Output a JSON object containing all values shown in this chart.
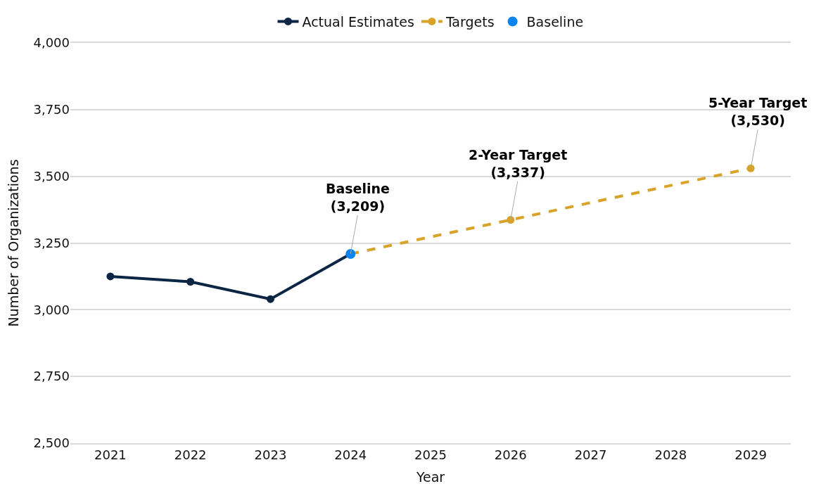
{
  "chart_data": {
    "type": "line",
    "xlabel": "Year",
    "ylabel": "Number of Organizations",
    "categories": [
      "2021",
      "2022",
      "2023",
      "2024",
      "2025",
      "2026",
      "2027",
      "2028",
      "2029"
    ],
    "series": [
      {
        "name": "Actual Estimates",
        "color": "#0b2545",
        "marker": "circle",
        "line_style": "solid",
        "values": [
          3125,
          3105,
          3040,
          3209,
          null,
          null,
          null,
          null,
          null
        ]
      },
      {
        "name": "Targets",
        "color": "#d9a32a",
        "marker": "circle",
        "line_style": "dashed",
        "values": [
          null,
          null,
          null,
          3209,
          null,
          3337,
          null,
          null,
          3530
        ]
      },
      {
        "name": "Baseline",
        "color": "#0a84f0",
        "type": "scatter",
        "marker": "circle",
        "values": [
          null,
          null,
          null,
          3209,
          null,
          null,
          null,
          null,
          null
        ]
      }
    ],
    "annotations": [
      {
        "text": "Baseline\n(3,209)",
        "x": "2024",
        "y": 3209
      },
      {
        "text": "2-Year Target\n(3,337)",
        "x": "2026",
        "y": 3337
      },
      {
        "text": "5-Year Target\n(3,530)",
        "x": "2029",
        "y": 3530
      }
    ],
    "ylim": [
      2500,
      4000
    ],
    "yticks": [
      {
        "value": 2500,
        "label": "2,500"
      },
      {
        "value": 2750,
        "label": "2,750"
      },
      {
        "value": 3000,
        "label": "3,000"
      },
      {
        "value": 3250,
        "label": "3,250"
      },
      {
        "value": 3500,
        "label": "3,500"
      },
      {
        "value": 3750,
        "label": "3,750"
      },
      {
        "value": 4000,
        "label": "4,000"
      }
    ],
    "grid": "y",
    "legend": "top"
  }
}
